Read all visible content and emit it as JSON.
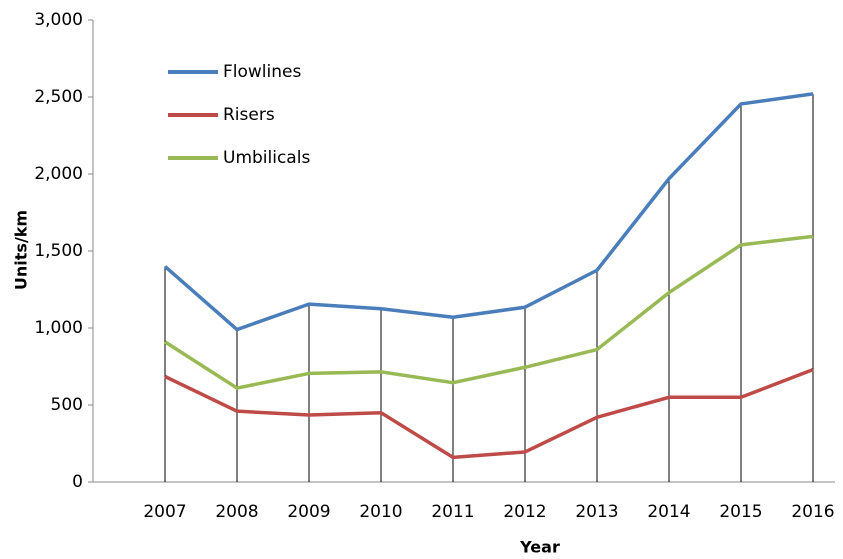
{
  "chart_data": {
    "type": "line",
    "x_label": "Year",
    "y_label": "Units/km",
    "categories": [
      "2007",
      "2008",
      "2009",
      "2010",
      "2011",
      "2012",
      "2013",
      "2014",
      "2015",
      "2016"
    ],
    "series": [
      {
        "name": "Flowlines",
        "color": "#4a7ebb",
        "values": [
          1400,
          990,
          1155,
          1125,
          1070,
          1135,
          1375,
          1970,
          2455,
          2520
        ]
      },
      {
        "name": "Risers",
        "color": "#be4b48",
        "values": [
          685,
          460,
          435,
          450,
          160,
          195,
          420,
          550,
          550,
          730
        ]
      },
      {
        "name": "Umbilicals",
        "color": "#98b954",
        "values": [
          910,
          610,
          705,
          715,
          645,
          745,
          860,
          1230,
          1540,
          1595
        ]
      }
    ],
    "ylim": [
      0,
      3000
    ],
    "yticks": [
      0,
      500,
      {
        "value": 1000,
        "label": "1,000"
      },
      {
        "value": 1500,
        "label": "1,500"
      },
      {
        "value": 2000,
        "label": "2,000"
      },
      {
        "value": 2500,
        "label": "2,500"
      },
      {
        "value": 3000,
        "label": "3,000"
      }
    ],
    "drop_lines": true,
    "legend": "upper left"
  }
}
